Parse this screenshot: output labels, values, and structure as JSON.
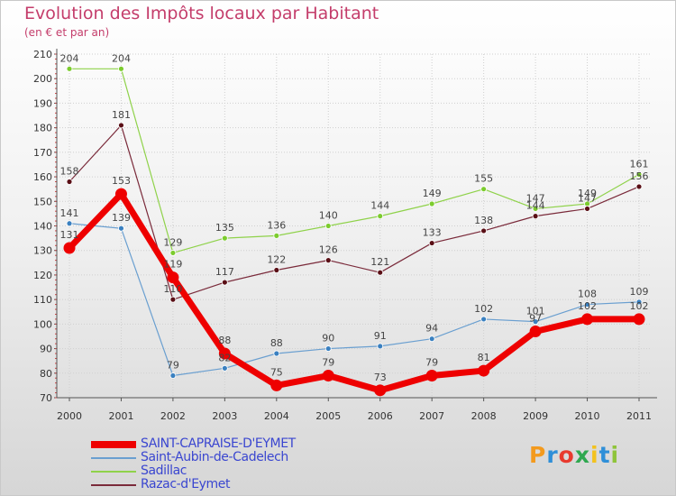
{
  "header": {
    "title": "Evolution des Impôts locaux par Habitant",
    "subtitle": "(en € et par an)"
  },
  "logo_text": "Proxiti",
  "chart_data": {
    "type": "line",
    "title": "Evolution des Impôts locaux par Habitant",
    "subtitle": "(en € et par an)",
    "categories": [
      "2000",
      "2001",
      "2002",
      "2003",
      "2004",
      "2005",
      "2006",
      "2007",
      "2008",
      "2009",
      "2010",
      "2011"
    ],
    "y_ticks": [
      "70",
      "80",
      "90",
      "100",
      "110",
      "120",
      "130",
      "140",
      "150",
      "160",
      "170",
      "180",
      "190",
      "200",
      "210"
    ],
    "ylim": [
      70,
      210
    ],
    "grid": true,
    "legend_position": "bottom-left",
    "series": [
      {
        "name": "Sadillac",
        "color": "#8fd24a",
        "point_color": "#7ccc2e",
        "width": 1.2,
        "values": [
          204,
          204,
          129,
          135,
          136,
          140,
          144,
          149,
          155,
          147,
          149,
          161
        ]
      },
      {
        "name": "Razac-d'Eymet",
        "color": "#7a2a3a",
        "point_color": "#5a0f16",
        "width": 1.2,
        "values": [
          158,
          181,
          110,
          117,
          122,
          126,
          121,
          133,
          138,
          144,
          147,
          156
        ]
      },
      {
        "name": "Saint-Aubin-de-Cadelech",
        "color": "#6a9fd0",
        "point_color": "#3a80c0",
        "width": 1.2,
        "values": [
          141,
          139,
          79,
          82,
          88,
          90,
          91,
          94,
          102,
          101,
          108,
          109
        ]
      },
      {
        "name": "SAINT-CAPRAISE-D'EYMET",
        "color": "#ee0000",
        "point_color": "#ee0000",
        "width": 7,
        "values": [
          131,
          153,
          119,
          88,
          75,
          79,
          73,
          79,
          81,
          97,
          102,
          102
        ]
      }
    ],
    "legend_order": [
      "SAINT-CAPRAISE-D'EYMET",
      "Saint-Aubin-de-Cadelech",
      "Sadillac",
      "Razac-d'Eymet"
    ]
  }
}
